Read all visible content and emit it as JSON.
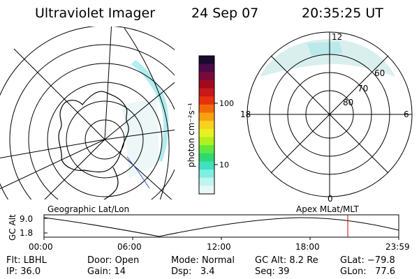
{
  "header": {
    "title": "Ultraviolet Imager",
    "date": "24 Sep 07",
    "time": "20:35:25 UT"
  },
  "colorbar": {
    "unit_label": "photon cm⁻²s⁻¹",
    "ticks": [
      "100",
      "10"
    ],
    "colors": [
      "#1a0a2e",
      "#4a0a4a",
      "#7a0a3a",
      "#a00a20",
      "#c81818",
      "#e83010",
      "#f06a08",
      "#f8a010",
      "#f8d020",
      "#e8f020",
      "#b0f020",
      "#60e840",
      "#30d870",
      "#40e0c0",
      "#80eee0",
      "#c0f4ee",
      "#e8f8f6"
    ]
  },
  "left_map": {
    "label": "Geographic Lat/Lon"
  },
  "right_map": {
    "label": "Apex MLat/MLT",
    "mlt_labels": {
      "top": "12",
      "left": "18",
      "right": "6",
      "bottom": "0"
    },
    "mlat_labels": [
      "60",
      "70",
      "80"
    ]
  },
  "timeline": {
    "ylabel": "GC Alt",
    "y_ticks": [
      "9.0",
      "1.8"
    ],
    "x_ticks": [
      "00:00",
      "06:00",
      "12:00",
      "18:00",
      "23:59"
    ],
    "marker_color": "#cc0000"
  },
  "info": {
    "flt_label": "Flt:",
    "flt_value": "LBHL",
    "door_label": "Door:",
    "door_value": "Open",
    "mode_label": "Mode:",
    "mode_value": "Normal",
    "gcalt_label": "GC Alt:",
    "gcalt_value": "8.2 Re",
    "glat_label": "GLat:",
    "glat_value": "−79.8",
    "ip_label": "IP:",
    "ip_value": "36.0",
    "gain_label": "Gain:",
    "gain_value": "14",
    "dsp_label": "Dsp:",
    "dsp_value": "3.4",
    "seq_label": "Seq:",
    "seq_value": "39",
    "glon_label": "GLon:",
    "glon_value": "77.6"
  }
}
